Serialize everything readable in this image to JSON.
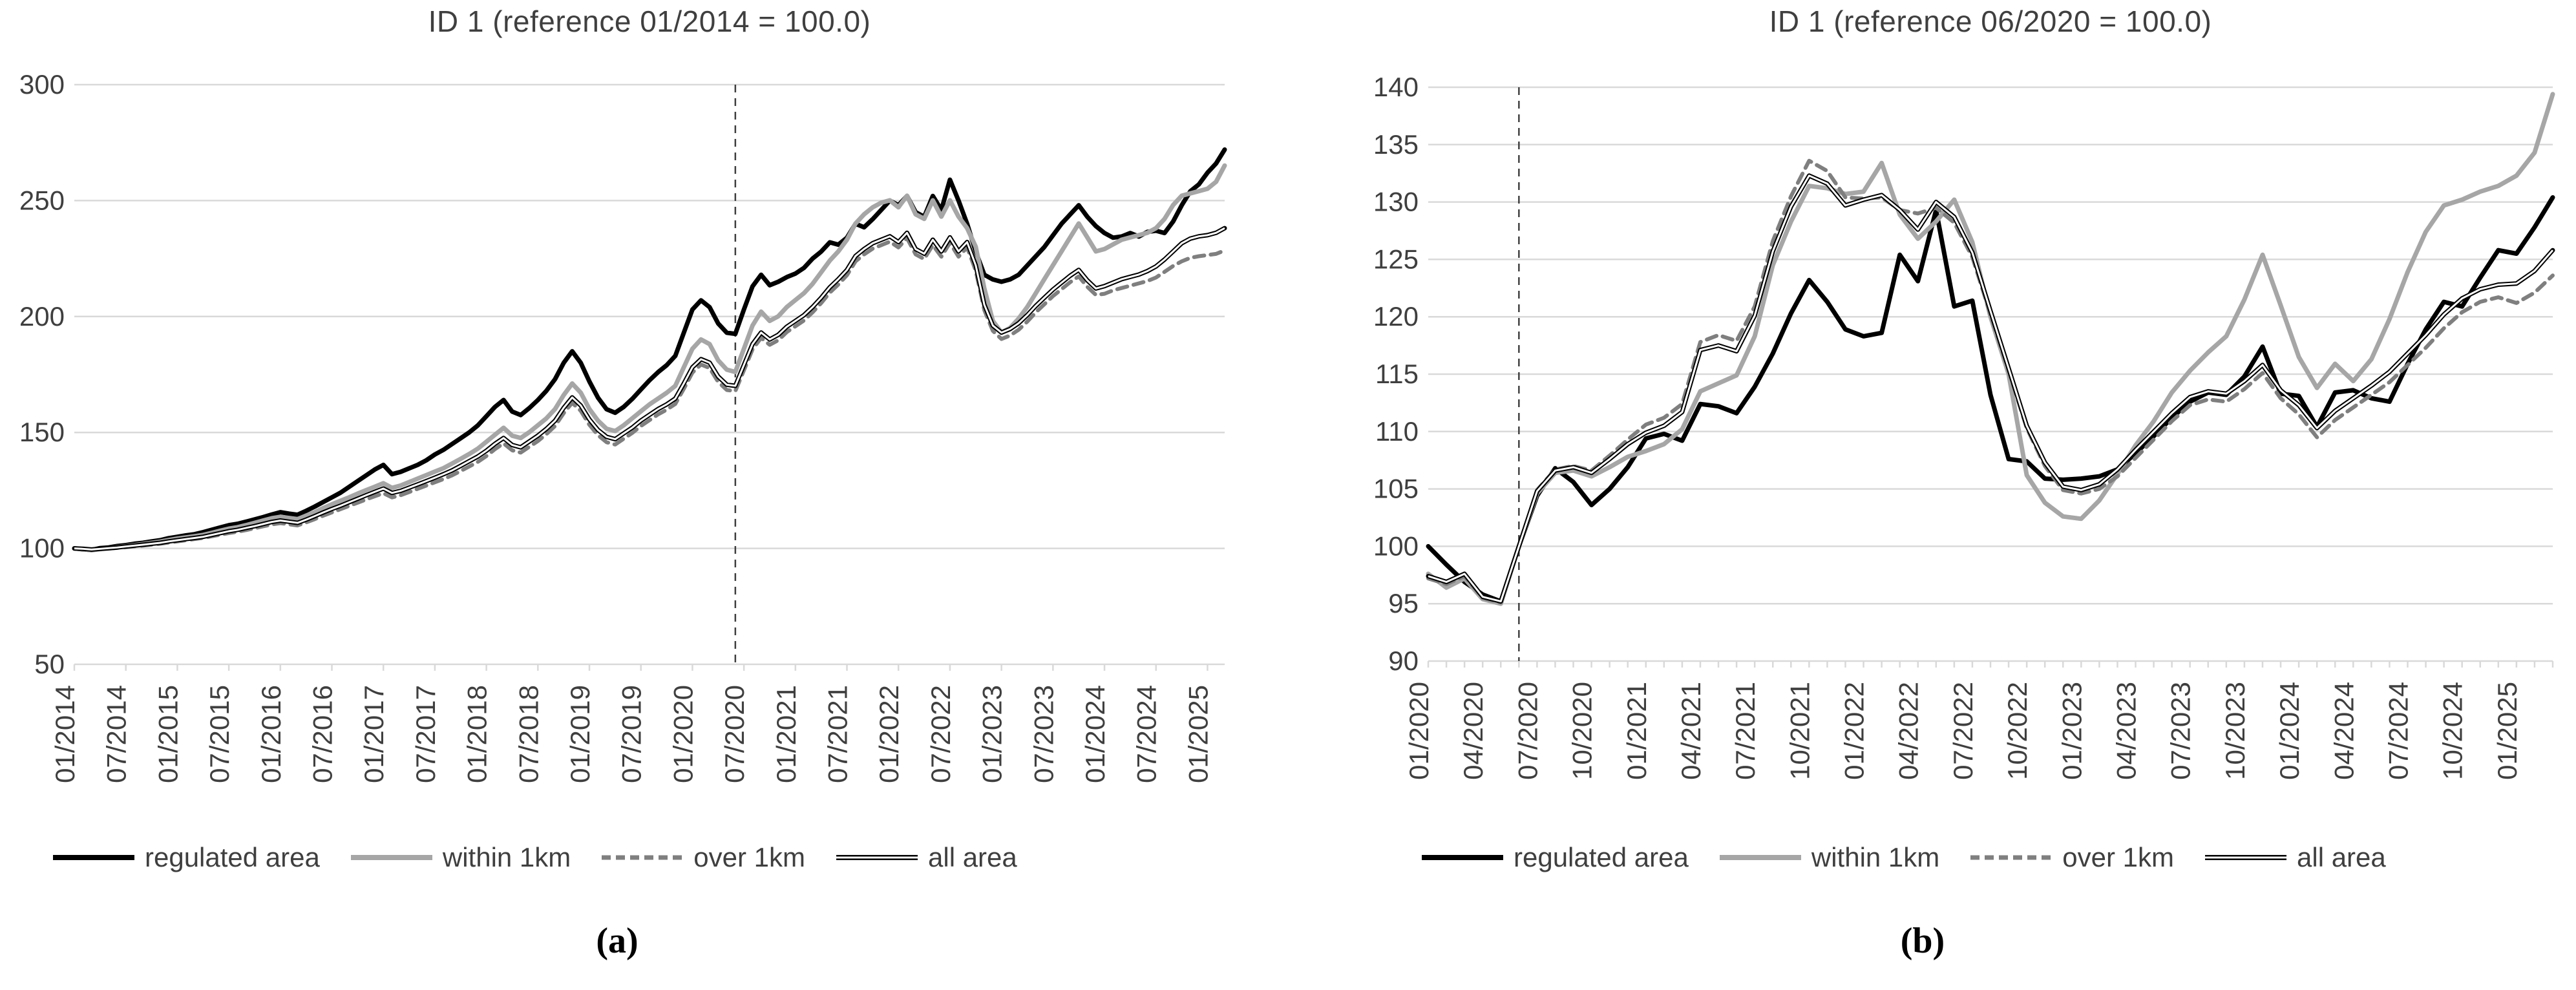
{
  "figure": {
    "type": "two-panel line chart figure",
    "text_color": "#3f3f3f",
    "grid_color": "#d9d9d9",
    "background": "#ffffff"
  },
  "chart_data": [
    {
      "type": "line",
      "title": "ID 1 (reference 01/2014 = 100.0)",
      "caption": "(a)",
      "ylim": [
        50,
        300
      ],
      "ytick_step": 50,
      "grid": true,
      "legend_position": "bottom",
      "x_start": "01/2014",
      "x_label_step": 6,
      "x_tick_step": 6,
      "x_labels": [
        "01/2014",
        "07/2014",
        "01/2015",
        "07/2015",
        "01/2016",
        "07/2016",
        "01/2017",
        "07/2017",
        "01/2018",
        "07/2018",
        "01/2019",
        "07/2019",
        "01/2020",
        "07/2020",
        "01/2021",
        "07/2021",
        "01/2022",
        "07/2022",
        "01/2023",
        "07/2023",
        "01/2024",
        "07/2024",
        "01/2025"
      ],
      "vline": {
        "label": "06/2020",
        "index": 77,
        "color": "#404040"
      },
      "series": [
        {
          "name": "regulated area",
          "color": "#000000",
          "width": 7,
          "dash": null,
          "double": false,
          "values": [
            100,
            99.6,
            99.3,
            100.1,
            100.4,
            101,
            101.4,
            102,
            102.4,
            103,
            103.5,
            104.4,
            105,
            105.6,
            106.1,
            107,
            108,
            109,
            110,
            110.6,
            111.5,
            112.5,
            113.5,
            114.6,
            115.6,
            115,
            114.5,
            116.2,
            118,
            120,
            122,
            124,
            126.5,
            129,
            131.5,
            134,
            136,
            132,
            133,
            134.5,
            136,
            138,
            140.5,
            142.5,
            145,
            147.5,
            150,
            153,
            157,
            161,
            164,
            159,
            157.5,
            160.5,
            164,
            168,
            173,
            180,
            185,
            180,
            172,
            165,
            160,
            158.5,
            161,
            164.5,
            168.5,
            172.5,
            176,
            179,
            183,
            193,
            203,
            207,
            204,
            197,
            193,
            192.5,
            203,
            213,
            218,
            213.5,
            215,
            217,
            218.5,
            221,
            225,
            228,
            232,
            231,
            234,
            240,
            238.5,
            242,
            246,
            250,
            248,
            252,
            245,
            243,
            252,
            246,
            259,
            250,
            240,
            228,
            218,
            216,
            215,
            216,
            218,
            222,
            226,
            230,
            235,
            240,
            244,
            248,
            243,
            239,
            236,
            234,
            234.5,
            236,
            234.5,
            236.5,
            237,
            236,
            241,
            248,
            254,
            257,
            262,
            266,
            272
          ]
        },
        {
          "name": "within 1km",
          "color": "#a6a6a6",
          "width": 7,
          "dash": null,
          "double": false,
          "values": [
            100,
            99.7,
            99.2,
            99.7,
            100,
            100.5,
            100.9,
            101.4,
            101.9,
            102.4,
            102.9,
            103.6,
            104.2,
            104.7,
            105.2,
            105.8,
            106.7,
            107.6,
            108.5,
            109.1,
            110,
            111,
            112,
            113,
            113.6,
            113.1,
            112.6,
            114.1,
            115.6,
            117.4,
            119,
            120.5,
            122,
            123.6,
            125.1,
            126.6,
            128.1,
            126.1,
            127.1,
            128.6,
            130.1,
            131.6,
            133.1,
            134.6,
            136.6,
            138.6,
            140.7,
            143,
            146,
            149,
            152,
            148.6,
            147.6,
            150.1,
            153.1,
            156.1,
            160.1,
            166.1,
            171.1,
            167.1,
            160.1,
            155.1,
            151.6,
            150.6,
            153.1,
            156.1,
            159.1,
            162.1,
            164.6,
            167.1,
            170.1,
            178.1,
            186.1,
            190.1,
            188.1,
            181.1,
            177.1,
            176.1,
            186.1,
            196.1,
            202.1,
            198.1,
            200.1,
            204.1,
            207.1,
            210.1,
            214.1,
            219.1,
            224.1,
            228.1,
            233.1,
            240.1,
            244.1,
            247.1,
            249.1,
            250.1,
            247.1,
            252.1,
            244.1,
            242.1,
            250.1,
            243.1,
            250.1,
            243.1,
            238.1,
            230.1,
            212.1,
            198.1,
            193.1,
            195.1,
            199.1,
            204.1,
            210.1,
            216.1,
            222.1,
            228.1,
            234.1,
            240.1,
            234.1,
            228.1,
            229.1,
            231.1,
            233.1,
            234.1,
            235.1,
            236.1,
            238.1,
            242.1,
            248.1,
            252.1,
            253.1,
            254.1,
            255.1,
            258.1,
            265.1
          ]
        },
        {
          "name": "over 1km",
          "color": "#7f7f7f",
          "width": 6,
          "dash": [
            16,
            10
          ],
          "double": false,
          "values": [
            100,
            99.7,
            99.3,
            99.6,
            99.9,
            100.2,
            100.5,
            100.9,
            101.2,
            101.6,
            102,
            102.5,
            103,
            103.5,
            104,
            104.5,
            105.2,
            105.9,
            106.6,
            107.2,
            107.9,
            108.7,
            109.5,
            110.3,
            110.9,
            110.4,
            109.9,
            111.2,
            112.6,
            114.1,
            115.5,
            116.9,
            118.3,
            119.7,
            121.1,
            122.5,
            123.8,
            122,
            122.9,
            124.3,
            125.7,
            127.1,
            128.5,
            129.9,
            131.5,
            133.4,
            135.3,
            137.3,
            139.8,
            142.8,
            145.3,
            142.3,
            141.3,
            143.8,
            146.3,
            149.3,
            152.8,
            158.3,
            162.8,
            159.3,
            153.3,
            148.8,
            145.8,
            144.8,
            147.3,
            149.8,
            152.8,
            155.3,
            157.8,
            159.8,
            162.3,
            168.8,
            175.8,
            179.3,
            177.8,
            171.8,
            168.3,
            167.8,
            176.8,
            185.8,
            190.8,
            187.8,
            189.8,
            193.3,
            195.8,
            198.3,
            201.8,
            205.8,
            210.3,
            213.8,
            217.8,
            223.8,
            226.8,
            229.3,
            230.8,
            232.3,
            229.8,
            233.8,
            226.8,
            224.8,
            230.8,
            225.8,
            231.8,
            225.8,
            229.8,
            219.8,
            202.8,
            193.8,
            190.3,
            191.8,
            194.3,
            197.8,
            201.8,
            205.3,
            208.8,
            211.8,
            214.8,
            217.3,
            212.8,
            209.3,
            209.8,
            211.3,
            212.3,
            213.3,
            214.3,
            215.3,
            216.8,
            219.3,
            221.8,
            223.8,
            225.3,
            226,
            226.5,
            227,
            228.5
          ]
        },
        {
          "name": "all area",
          "color": "#000000",
          "width": 7,
          "dash": null,
          "double": true,
          "values": [
            100,
            99.8,
            99.5,
            99.8,
            100.1,
            100.4,
            100.8,
            101.2,
            101.6,
            102,
            102.4,
            103,
            103.5,
            104,
            104.5,
            105,
            105.8,
            106.6,
            107.4,
            108,
            108.8,
            109.6,
            110.5,
            111.4,
            112,
            111.5,
            111,
            112.4,
            113.9,
            115.5,
            117,
            118.4,
            119.9,
            121.4,
            122.9,
            124.4,
            125.8,
            123.9,
            124.8,
            126.2,
            127.6,
            129,
            130.5,
            132,
            133.6,
            135.6,
            137.6,
            139.6,
            142.1,
            145.1,
            147.6,
            144.6,
            143.6,
            146.1,
            148.6,
            151.6,
            155.1,
            160.6,
            165.1,
            161.6,
            155.6,
            151.1,
            148.1,
            147.1,
            149.6,
            152.1,
            155.1,
            157.6,
            160.1,
            162.1,
            164.6,
            171.1,
            178.1,
            181.6,
            180.1,
            174.1,
            170.6,
            170.1,
            179.1,
            188.1,
            193.1,
            190.1,
            192.1,
            195.6,
            198.1,
            200.6,
            204.1,
            208.1,
            212.6,
            216.1,
            220.1,
            226.1,
            229.1,
            231.6,
            233.1,
            234.6,
            232.1,
            236.1,
            229.1,
            227.1,
            233.1,
            228.1,
            234.1,
            228.1,
            232.1,
            222.1,
            205.1,
            196.1,
            193.1,
            194.6,
            197.1,
            200.6,
            204.6,
            208.1,
            211.6,
            214.6,
            217.6,
            220.1,
            215.6,
            212.1,
            213.1,
            214.6,
            216.1,
            217.1,
            218.1,
            219.6,
            221.6,
            224.6,
            228.1,
            231.6,
            233.6,
            234.6,
            235.1,
            236.1,
            238.1
          ]
        }
      ]
    },
    {
      "type": "line",
      "title": "ID 1 (reference 06/2020 = 100.0)",
      "caption": "(b)",
      "ylim": [
        90,
        140
      ],
      "ytick_step": 5,
      "grid": true,
      "legend_position": "bottom",
      "x_start": "01/2020",
      "x_label_step": 3,
      "x_tick_step": 1,
      "x_labels": [
        "01/2020",
        "04/2020",
        "07/2020",
        "10/2020",
        "01/2021",
        "04/2021",
        "07/2021",
        "10/2021",
        "01/2022",
        "04/2022",
        "07/2022",
        "10/2022",
        "01/2023",
        "04/2023",
        "07/2023",
        "10/2023",
        "01/2024",
        "04/2024",
        "07/2024",
        "10/2024",
        "01/2025"
      ],
      "vline": {
        "label": "06/2020",
        "index": 5,
        "color": "#404040"
      },
      "series": [
        {
          "name": "regulated area",
          "color": "#000000",
          "width": 7,
          "dash": null,
          "double": false,
          "values": [
            100,
            98.4,
            96.9,
            95.8,
            95.2,
            100,
            104.4,
            106.8,
            105.6,
            103.6,
            105,
            106.9,
            109.4,
            109.8,
            109.2,
            112.4,
            112.2,
            111.6,
            113.9,
            116.8,
            120.3,
            123.2,
            121.3,
            118.9,
            118.3,
            118.6,
            125.4,
            123.1,
            129.3,
            120.9,
            121.4,
            113.2,
            107.6,
            107.4,
            105.9,
            105.8,
            105.9,
            106.1,
            106.7,
            108.1,
            109.6,
            111.2,
            112.6,
            113.4,
            113.2,
            114.8,
            117.4,
            113.3,
            113.1,
            110.4,
            113.4,
            113.6,
            112.9,
            112.6,
            115.9,
            118.9,
            121.3,
            120.9,
            123.4,
            125.8,
            125.5,
            127.8,
            130.4
          ]
        },
        {
          "name": "within 1km",
          "color": "#a6a6a6",
          "width": 7,
          "dash": null,
          "double": false,
          "values": [
            97.6,
            96.4,
            97.2,
            95.4,
            95,
            100,
            104.6,
            106.4,
            106.6,
            106.1,
            106.9,
            107.8,
            108.3,
            108.9,
            110.2,
            113.5,
            114.2,
            114.9,
            118.3,
            124.5,
            128.3,
            131.4,
            131.2,
            130.7,
            130.9,
            133.4,
            128.9,
            126.8,
            128.3,
            130.2,
            126.5,
            120,
            115,
            106.2,
            103.8,
            102.6,
            102.4,
            104,
            106.3,
            108.8,
            110.9,
            113.4,
            115.3,
            116.9,
            118.3,
            121.5,
            125.4,
            121,
            116.5,
            113.8,
            115.9,
            114.4,
            116.3,
            119.8,
            123.9,
            127.4,
            129.7,
            130.2,
            130.9,
            131.4,
            132.3,
            134.3,
            139.4
          ]
        },
        {
          "name": "over 1km",
          "color": "#7f7f7f",
          "width": 6,
          "dash": [
            16,
            10
          ],
          "double": false,
          "values": [
            97.2,
            96.7,
            97.4,
            95.5,
            95.1,
            100,
            104.9,
            106.7,
            107,
            106.6,
            107.9,
            109.3,
            110.6,
            111.2,
            112.4,
            117.8,
            118.4,
            117.9,
            120.9,
            126.6,
            130.5,
            133.6,
            132.7,
            130.4,
            130.3,
            130.4,
            129.3,
            129,
            129.5,
            128.2,
            125.2,
            120.2,
            115.3,
            110.3,
            107,
            104.9,
            104.6,
            105,
            106.1,
            107.7,
            109.3,
            110.9,
            112.3,
            112.8,
            112.6,
            113.7,
            115.1,
            112.9,
            111.5,
            109.5,
            111,
            112.1,
            113.2,
            114.3,
            115.8,
            117.3,
            119,
            120.4,
            121.3,
            121.7,
            121.2,
            122.1,
            123.6
          ]
        },
        {
          "name": "all area",
          "color": "#000000",
          "width": 7,
          "dash": null,
          "double": true,
          "values": [
            97.4,
            96.9,
            97.6,
            95.6,
            95.2,
            100,
            104.8,
            106.6,
            106.9,
            106.4,
            107.6,
            108.9,
            109.9,
            110.5,
            111.7,
            117.1,
            117.5,
            117,
            120.1,
            125.7,
            129.6,
            132.3,
            131.6,
            129.7,
            130.2,
            130.6,
            129.3,
            127.6,
            130,
            128.7,
            125.6,
            120.5,
            115.5,
            110.5,
            107.3,
            105.2,
            104.9,
            105.4,
            106.7,
            108.4,
            110,
            111.6,
            113,
            113.5,
            113.3,
            114.4,
            115.8,
            113.6,
            112.3,
            110.3,
            111.8,
            112.9,
            114,
            115.2,
            116.8,
            118.4,
            120.2,
            121.6,
            122.4,
            122.8,
            122.9,
            124,
            125.8
          ]
        }
      ]
    }
  ]
}
